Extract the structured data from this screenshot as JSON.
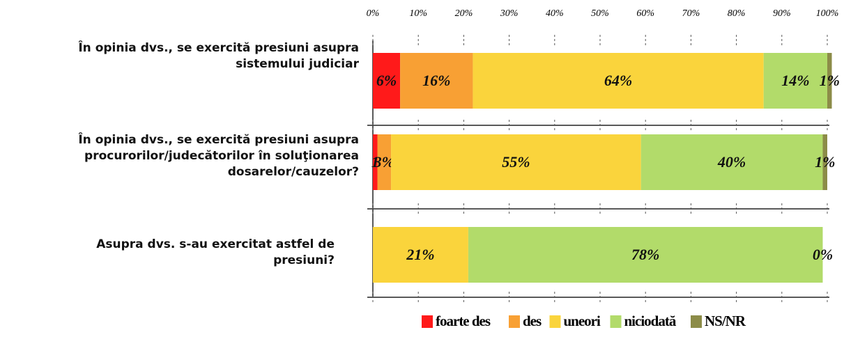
{
  "chart_data": {
    "type": "stacked_barh",
    "categories": [
      "În opinia dvs., se exercită presiuni asupra sistemului judiciar",
      "În opinia dvs., se exercită presiuni asupra procurorilor/judecătorilor în soluţionarea dosarelor/cauzelor?",
      "Asupra dvs. s-au exercitat astfel de presiuni?"
    ],
    "series": [
      {
        "name": "foarte des",
        "color": "#ff1a1a",
        "values": [
          6,
          1,
          null
        ],
        "value_labels": [
          "6%",
          "1",
          null
        ]
      },
      {
        "name": "des",
        "color": "#f8a034",
        "values": [
          16,
          3,
          null
        ],
        "value_labels": [
          "16%",
          "3%",
          null
        ]
      },
      {
        "name": "uneori",
        "color": "#fad43c",
        "values": [
          64,
          55,
          21
        ],
        "value_labels": [
          "64%",
          "55%",
          "21%"
        ]
      },
      {
        "name": "niciodată",
        "color": "#b2db6a",
        "values": [
          14,
          40,
          78
        ],
        "value_labels": [
          "14%",
          "40%",
          "78%"
        ]
      },
      {
        "name": "NS/NR",
        "color": "#8c8c48",
        "values": [
          1,
          1,
          0
        ],
        "value_labels": [
          "1%",
          "1%",
          "0%"
        ]
      }
    ],
    "xlim": [
      0,
      100
    ],
    "xticks": [
      {
        "value": 0,
        "label": "0%"
      },
      {
        "value": 10,
        "label": "10%"
      },
      {
        "value": 20,
        "label": "20%"
      },
      {
        "value": 30,
        "label": "30%"
      },
      {
        "value": 40,
        "label": "40%"
      },
      {
        "value": 50,
        "label": "50%"
      },
      {
        "value": 60,
        "label": "60%"
      },
      {
        "value": 70,
        "label": "70%"
      },
      {
        "value": 80,
        "label": "80%"
      },
      {
        "value": 90,
        "label": "90%"
      },
      {
        "value": 100,
        "label": "100%"
      }
    ],
    "legend": "bottom"
  }
}
